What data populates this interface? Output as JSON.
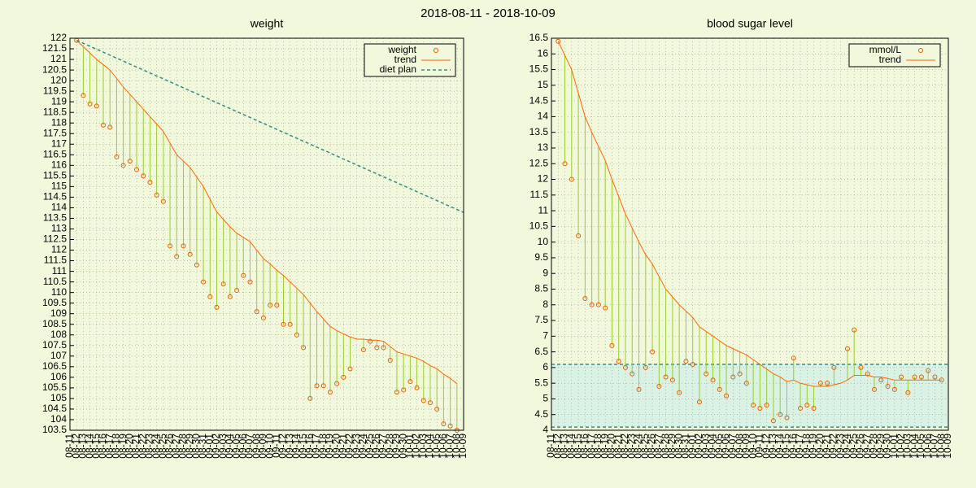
{
  "title": "2018-08-11 - 2018-10-09",
  "chart_data": [
    {
      "type": "line",
      "title": "weight",
      "categories": [
        "08-11",
        "08-12",
        "08-13",
        "08-14",
        "08-15",
        "08-16",
        "08-17",
        "08-18",
        "08-19",
        "08-20",
        "08-21",
        "08-22",
        "08-23",
        "08-24",
        "08-25",
        "08-26",
        "08-27",
        "08-28",
        "08-29",
        "08-30",
        "08-31",
        "09-01",
        "09-02",
        "09-03",
        "09-04",
        "09-05",
        "09-06",
        "09-07",
        "09-08",
        "09-09",
        "09-10",
        "09-11",
        "09-12",
        "09-13",
        "09-14",
        "09-15",
        "09-16",
        "09-17",
        "09-18",
        "09-19",
        "09-20",
        "09-21",
        "09-22",
        "09-23",
        "09-24",
        "09-25",
        "09-26",
        "09-27",
        "09-28",
        "09-29",
        "09-30",
        "10-01",
        "10-02",
        "10-03",
        "10-04",
        "10-05",
        "10-06",
        "10-07",
        "10-08",
        "10-09"
      ],
      "ylim": [
        103.5,
        122
      ],
      "yticks": [
        103.5,
        104,
        104.5,
        105,
        105.5,
        106,
        106.5,
        107,
        107.5,
        108,
        108.5,
        109,
        109.5,
        110,
        110.5,
        111,
        111.5,
        112,
        112.5,
        113,
        113.5,
        114,
        114.5,
        115,
        115.5,
        116,
        116.5,
        117,
        117.5,
        118,
        118.5,
        119,
        119.5,
        120,
        120.5,
        121,
        121.5,
        122
      ],
      "grid": true,
      "legend": "top-right",
      "impulse_color": "#9acd32",
      "impulses_between": [
        0,
        1
      ],
      "series": [
        {
          "name": "weight",
          "color": "#e65c00",
          "style": "points",
          "values": [
            null,
            121.9,
            119.3,
            118.9,
            118.8,
            117.9,
            117.8,
            116.4,
            116.0,
            116.2,
            115.8,
            115.5,
            115.2,
            114.6,
            114.3,
            112.2,
            111.7,
            112.2,
            111.8,
            111.3,
            110.5,
            109.8,
            109.3,
            110.4,
            109.8,
            110.1,
            110.8,
            110.5,
            109.1,
            108.8,
            109.4,
            109.4,
            108.5,
            108.5,
            108.0,
            107.4,
            105.0,
            105.6,
            105.6,
            105.3,
            105.7,
            106.0,
            106.4,
            null,
            107.3,
            107.7,
            107.4,
            107.4,
            106.8,
            105.3,
            105.4,
            105.8,
            105.5,
            104.9,
            104.8,
            104.5,
            103.8,
            103.7,
            103.5,
            null
          ]
        },
        {
          "name": "trend",
          "color": "#ff6600",
          "style": "line",
          "values": [
            null,
            121.9,
            121.6,
            121.3,
            121.0,
            120.75,
            120.5,
            120.1,
            119.7,
            119.35,
            119.0,
            118.65,
            118.3,
            117.95,
            117.6,
            117.05,
            116.5,
            116.2,
            115.9,
            115.45,
            115.0,
            114.4,
            113.8,
            113.45,
            113.1,
            112.8,
            112.6,
            112.4,
            112.0,
            111.6,
            111.35,
            111.05,
            110.8,
            110.5,
            110.2,
            109.9,
            109.5,
            109.1,
            108.75,
            108.4,
            108.2,
            108.05,
            107.9,
            107.8,
            107.8,
            107.75,
            107.75,
            107.7,
            107.45,
            107.2,
            107.1,
            107.0,
            106.9,
            106.75,
            106.55,
            106.4,
            106.15,
            105.95,
            105.7,
            null
          ]
        },
        {
          "name": "diet plan",
          "color": "#3a8a8a",
          "style": "dashed",
          "values": [
            null,
            121.9,
            121.76,
            121.62,
            121.48,
            121.34,
            121.2,
            121.06,
            120.92,
            120.78,
            120.64,
            120.5,
            120.36,
            120.22,
            120.08,
            119.94,
            119.8,
            119.66,
            119.52,
            119.38,
            119.24,
            119.1,
            118.96,
            118.82,
            118.68,
            118.54,
            118.4,
            118.26,
            118.12,
            117.98,
            117.84,
            117.7,
            117.56,
            117.42,
            117.28,
            117.14,
            117.0,
            116.86,
            116.72,
            116.58,
            116.44,
            116.3,
            116.16,
            116.02,
            115.88,
            115.74,
            115.6,
            115.46,
            115.32,
            115.18,
            115.04,
            114.9,
            114.76,
            114.62,
            114.48,
            114.34,
            114.2,
            114.06,
            113.92,
            113.78
          ]
        }
      ]
    },
    {
      "type": "line",
      "title": "blood sugar level",
      "categories": [
        "08-11",
        "08-12",
        "08-13",
        "08-14",
        "08-15",
        "08-16",
        "08-17",
        "08-18",
        "08-19",
        "08-20",
        "08-21",
        "08-22",
        "08-23",
        "08-24",
        "08-25",
        "08-26",
        "08-27",
        "08-28",
        "08-29",
        "08-30",
        "08-31",
        "09-01",
        "09-02",
        "09-03",
        "09-04",
        "09-05",
        "09-06",
        "09-07",
        "09-08",
        "09-09",
        "09-10",
        "09-11",
        "09-12",
        "09-13",
        "09-14",
        "09-15",
        "09-16",
        "09-17",
        "09-18",
        "09-19",
        "09-20",
        "09-21",
        "09-22",
        "09-23",
        "09-24",
        "09-25",
        "09-26",
        "09-27",
        "09-28",
        "09-29",
        "09-30",
        "10-01",
        "10-02",
        "10-03",
        "10-04",
        "10-05",
        "10-06",
        "10-07",
        "10-08",
        "10-09"
      ],
      "ylim": [
        4,
        16.5
      ],
      "yticks": [
        4,
        4.5,
        5,
        5.5,
        6,
        6.5,
        7,
        7.5,
        8,
        8.5,
        9,
        9.5,
        10,
        10.5,
        11,
        11.5,
        12,
        12.5,
        13,
        13.5,
        14,
        14.5,
        15,
        15.5,
        16,
        16.5
      ],
      "grid": true,
      "legend": "top-right",
      "impulse_color": "#9acd32",
      "impulses_between": [
        0,
        1
      ],
      "reference_band": [
        4.1,
        6.1
      ],
      "reference_color": "#3a8a8a",
      "reference_fill": "#c8eee8",
      "series": [
        {
          "name": "mmol/L",
          "color": "#e65c00",
          "style": "points",
          "values": [
            null,
            16.4,
            12.5,
            12.0,
            10.2,
            8.2,
            8.0,
            8.0,
            7.9,
            6.7,
            6.2,
            6.0,
            5.8,
            5.3,
            6.0,
            6.5,
            5.4,
            5.7,
            5.6,
            5.2,
            6.2,
            6.1,
            4.9,
            5.8,
            5.6,
            5.3,
            5.1,
            5.7,
            5.8,
            5.5,
            4.8,
            4.7,
            4.8,
            4.3,
            4.5,
            4.4,
            6.3,
            4.7,
            4.8,
            4.7,
            5.5,
            5.5,
            6.0,
            null,
            6.6,
            7.2,
            6.0,
            5.8,
            5.3,
            5.6,
            5.4,
            5.3,
            5.7,
            5.2,
            5.7,
            5.7,
            5.9,
            5.7,
            5.6,
            null
          ]
        },
        {
          "name": "trend",
          "color": "#ff6600",
          "style": "line",
          "values": [
            null,
            16.4,
            15.95,
            15.5,
            14.75,
            14.0,
            13.5,
            13.05,
            12.6,
            12.0,
            11.45,
            10.9,
            10.45,
            10.0,
            9.6,
            9.3,
            8.9,
            8.5,
            8.25,
            8.0,
            7.8,
            7.6,
            7.3,
            7.15,
            7.0,
            6.85,
            6.7,
            6.6,
            6.5,
            6.4,
            6.25,
            6.1,
            5.95,
            5.8,
            5.7,
            5.55,
            5.6,
            5.5,
            5.45,
            5.4,
            5.4,
            5.4,
            5.45,
            5.5,
            5.6,
            5.75,
            5.75,
            5.75,
            5.7,
            5.7,
            5.65,
            5.6,
            5.6,
            5.6,
            5.6,
            5.6,
            5.6,
            5.6,
            5.6,
            null
          ]
        }
      ]
    }
  ]
}
